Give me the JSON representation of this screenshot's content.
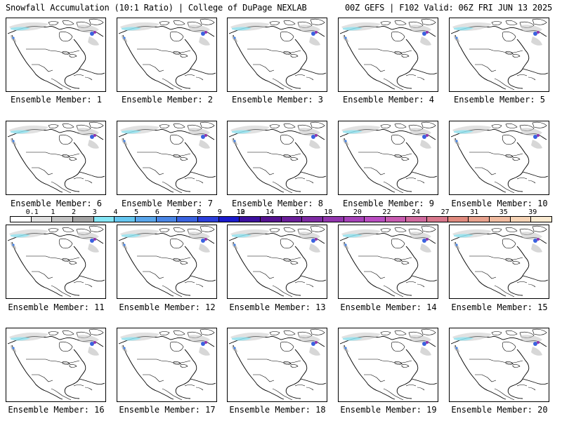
{
  "header": {
    "left": "Snowfall Accumulation (10:1 Ratio) | College of DuPage NEXLAB",
    "right": "00Z GEFS | F102 Valid: 06Z FRI JUN 13 2025"
  },
  "panels": [
    "Ensemble Member: 1",
    "Ensemble Member: 2",
    "Ensemble Member: 3",
    "Ensemble Member: 4",
    "Ensemble Member: 5",
    "Ensemble Member: 6",
    "Ensemble Member: 7",
    "Ensemble Member: 8",
    "Ensemble Member: 9",
    "Ensemble Member: 10",
    "Ensemble Member: 11",
    "Ensemble Member: 12",
    "Ensemble Member: 13",
    "Ensemble Member: 14",
    "Ensemble Member: 15",
    "Ensemble Member: 16",
    "Ensemble Member: 17",
    "Ensemble Member: 18",
    "Ensemble Member: 19",
    "Ensemble Member: 20"
  ],
  "colorbar": {
    "ticks": [
      "0.1",
      "1",
      "2",
      "3",
      "4",
      "5",
      "6",
      "7",
      "8",
      "9",
      "10",
      "12",
      "14",
      "16",
      "18",
      "20",
      "22",
      "24",
      "27",
      "31",
      "35",
      "39"
    ],
    "colors": [
      "#ffffff",
      "#e0e0e0",
      "#c2c2c2",
      "#a3a3a3",
      "#85e6f5",
      "#66c7f0",
      "#5aa6eb",
      "#4a86e5",
      "#3a63e0",
      "#2b3fdb",
      "#1a1acc",
      "#3d109e",
      "#55128f",
      "#6a1e99",
      "#7e2aa3",
      "#9236ad",
      "#a642b8",
      "#ba4ec2",
      "#c85cb0",
      "#d06a9e",
      "#d8788c",
      "#e08a7e",
      "#e8a28e",
      "#f0bba0",
      "#f5d3b5",
      "#faead0"
    ]
  }
}
